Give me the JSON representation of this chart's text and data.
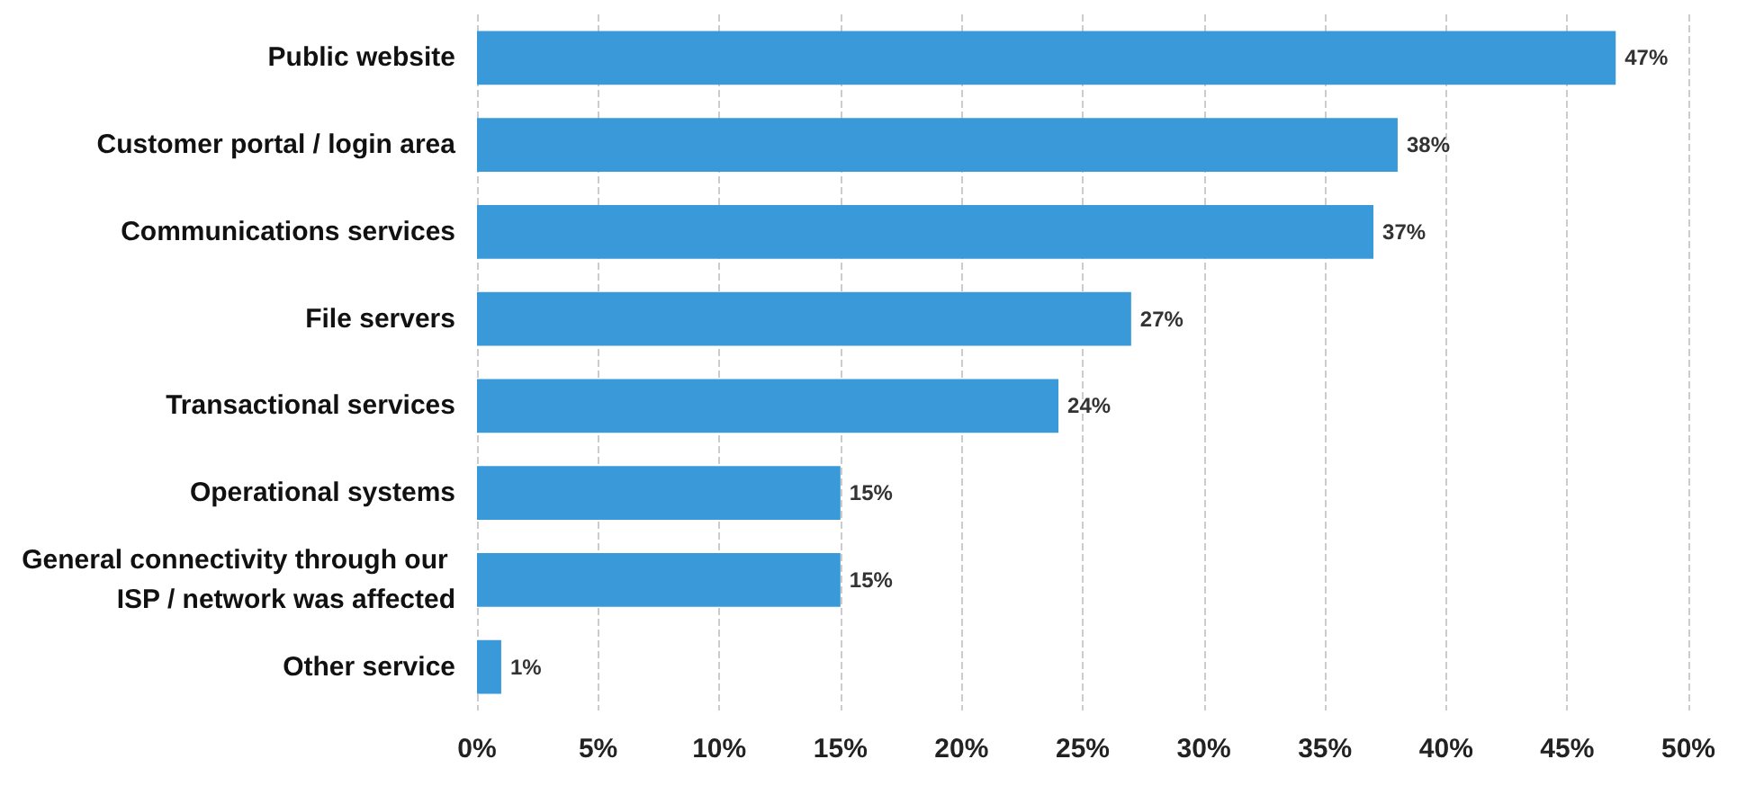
{
  "chart_data": {
    "type": "bar",
    "orientation": "horizontal",
    "categories": [
      "Public website",
      "Customer portal / login area",
      "Communications services",
      "File servers",
      "Transactional services",
      "Operational systems",
      "General connectivity through our ISP / network was affected",
      "Other service"
    ],
    "values": [
      47,
      38,
      37,
      27,
      24,
      15,
      15,
      1
    ],
    "value_labels": [
      "47%",
      "38%",
      "37%",
      "27%",
      "24%",
      "15%",
      "15%",
      "1%"
    ],
    "color": "#3a9ad9",
    "xlim": [
      0,
      50
    ],
    "xticks": [
      {
        "value": 0,
        "label": "0%"
      },
      {
        "value": 5,
        "label": "5%"
      },
      {
        "value": 10,
        "label": "10%"
      },
      {
        "value": 15,
        "label": "15%"
      },
      {
        "value": 20,
        "label": "20%"
      },
      {
        "value": 25,
        "label": "25%"
      },
      {
        "value": 30,
        "label": "30%"
      },
      {
        "value": 35,
        "label": "35%"
      },
      {
        "value": 40,
        "label": "40%"
      },
      {
        "value": 45,
        "label": "45%"
      },
      {
        "value": 50,
        "label": "50%"
      }
    ],
    "grid": "x"
  }
}
